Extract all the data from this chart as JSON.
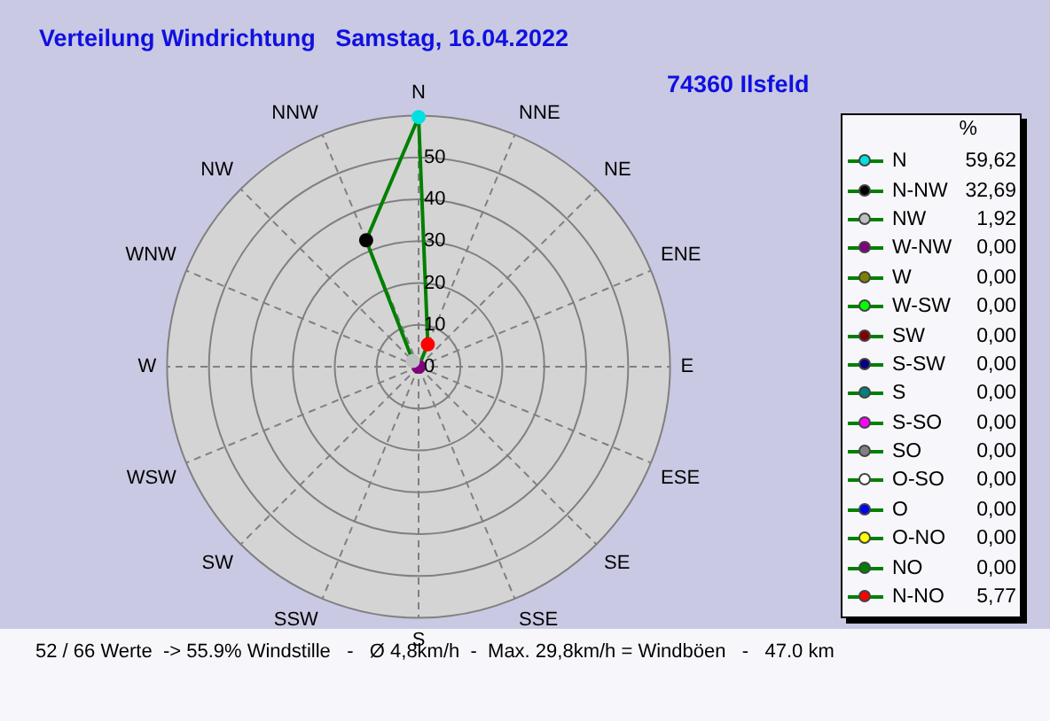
{
  "chart_data": [
    {
      "type": "radar",
      "title": "Verteilung Windrichtung   Samstag, 16.04.2022",
      "subtitle": "74360 Ilsfeld",
      "categories": [
        "N",
        "NNE",
        "NE",
        "ENE",
        "E",
        "ESE",
        "SE",
        "SSE",
        "S",
        "SSW",
        "SW",
        "WSW",
        "W",
        "WNW",
        "NW",
        "NNW"
      ],
      "series": [
        {
          "color": "#008000",
          "colors": [
            "#00e0e0",
            "#ff0000",
            "#008000",
            "#ffff00",
            "#0000ff",
            "#ffffff",
            "#808080",
            "#ff00ff",
            "#008080",
            "#000080",
            "#800000",
            "#00ff00",
            "#808000",
            "#800080",
            "#c0c0c0",
            "#000000"
          ],
          "values": [
            59.62,
            5.77,
            0,
            0,
            0,
            0,
            0,
            0,
            0,
            0,
            0,
            0,
            0,
            0,
            1.92,
            32.69
          ]
        }
      ],
      "ylim": [
        0,
        60
      ],
      "yticks": [
        0,
        10,
        20,
        30,
        40,
        50
      ],
      "grid": true,
      "marker": "circle",
      "line_style": "solid",
      "legend": false,
      "annotations": [
        "52 / 66 Werte  -> 55.9% Windstille   -   Ø 4,8km/h  -  Max. 29,8km/h = Windböen   -   47.0 km"
      ]
    },
    {
      "type": "other",
      "title": "%",
      "categories": [
        "N",
        "N-NW",
        "NW",
        "W-NW",
        "W",
        "W-SW",
        "SW",
        "S-SW",
        "S",
        "S-SO",
        "SO",
        "O-SO",
        "O",
        "O-NO",
        "NO",
        "N-NO"
      ],
      "value_labels": [
        "59,62",
        "32,69",
        "1,92",
        "0,00",
        "0,00",
        "0,00",
        "0,00",
        "0,00",
        "0,00",
        "0,00",
        "0,00",
        "0,00",
        "0,00",
        "0,00",
        "0,00",
        "5,77"
      ],
      "colors": [
        "#00e0e0",
        "#000000",
        "#c0c0c0",
        "#800080",
        "#808000",
        "#00ff00",
        "#800000",
        "#000080",
        "#008080",
        "#ff00ff",
        "#808080",
        "#ffffff",
        "#0000ff",
        "#ffff00",
        "#008000",
        "#ff0000"
      ]
    }
  ]
}
